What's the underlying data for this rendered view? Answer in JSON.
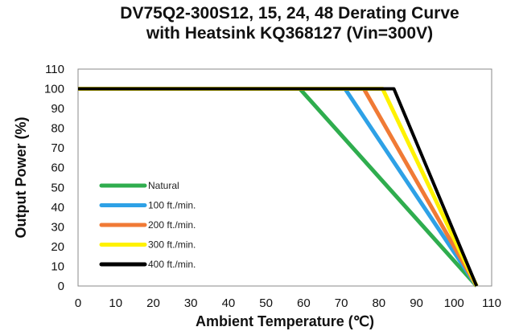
{
  "chart_data": {
    "type": "line",
    "title_line1": "DV75Q2-300S12, 15, 24, 48  Derating Curve",
    "title_line2": "with Heatsink KQ368127 (Vin=300V)",
    "xlabel": "Ambient Temperature (℃)",
    "ylabel": "Output Power (%)",
    "xlim": [
      0,
      105
    ],
    "ylim": [
      0,
      110
    ],
    "xticks": [
      "0",
      "10",
      "20",
      "30",
      "40",
      "50",
      "60",
      "70",
      "80",
      "90",
      "100",
      "110"
    ],
    "yticks": [
      "0",
      "10",
      "20",
      "30",
      "40",
      "50",
      "60",
      "70",
      "80",
      "90",
      "100",
      "110"
    ],
    "grid": false,
    "legend_position": "left",
    "series": [
      {
        "name": "Natural",
        "color": "#2fad4e",
        "x": [
          0,
          59,
          106
        ],
        "y": [
          100,
          100,
          0
        ]
      },
      {
        "name": "100 ft./min.",
        "color": "#2ea1e6",
        "x": [
          0,
          71,
          106
        ],
        "y": [
          100,
          100,
          0
        ]
      },
      {
        "name": "200 ft./min.",
        "color": "#f07a35",
        "x": [
          0,
          76,
          106
        ],
        "y": [
          100,
          100,
          0
        ]
      },
      {
        "name": "300 ft./min.",
        "color": "#fff200",
        "x": [
          0,
          81,
          106
        ],
        "y": [
          100,
          100,
          0
        ]
      },
      {
        "name": "400 ft./min.",
        "color": "#000000",
        "x": [
          0,
          84,
          106
        ],
        "y": [
          100,
          100,
          0
        ]
      }
    ]
  }
}
